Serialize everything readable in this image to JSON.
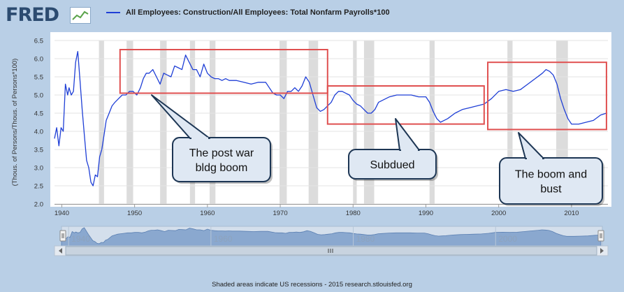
{
  "header": {
    "logo_text": "FRED",
    "logo_icon": "fred-chart-logo-icon",
    "legend_label": "All Employees: Construction/All Employees: Total Nonfarm Payrolls*100"
  },
  "footer": {
    "text": "Shaded areas indicate US recessions - 2015 research.stlouisfed.org"
  },
  "colors": {
    "series": "#1f3fd6",
    "annotation_box": "#e05050",
    "recession": "#dcdcdc",
    "callout_fill": "#dfe8f3",
    "callout_border": "#1d3654"
  },
  "annotations": [
    {
      "label": "The post war\nbldg boom",
      "box_x": [
        1948.0,
        1976.5
      ],
      "box_y": [
        5.05,
        6.25
      ]
    },
    {
      "label": "Subdued",
      "box_x": [
        1976.5,
        1998.0
      ],
      "box_y": [
        4.2,
        5.25
      ]
    },
    {
      "label": "The boom and\nbust",
      "box_x": [
        1998.5,
        2014.8
      ],
      "box_y": [
        4.05,
        5.9
      ]
    }
  ],
  "navigator": {
    "tick_labels": [
      "1940",
      "1960",
      "1980",
      "2000"
    ],
    "range": [
      1939,
      2015
    ]
  },
  "chart_data": {
    "type": "line",
    "title": "",
    "xlabel": "",
    "ylabel": "(Thous. of Persons/Thous. of Persons*100)",
    "xlim": [
      1939,
      2015
    ],
    "ylim": [
      2.0,
      6.5
    ],
    "x_ticks": [
      1940,
      1950,
      1960,
      1970,
      1980,
      1990,
      2000,
      2010
    ],
    "y_ticks": [
      2.0,
      2.5,
      3.0,
      3.5,
      4.0,
      4.5,
      5.0,
      5.5,
      6.0,
      6.5
    ],
    "grid": "horizontal",
    "recessions": [
      [
        1945.1,
        1945.8
      ],
      [
        1948.9,
        1949.8
      ],
      [
        1953.5,
        1954.4
      ],
      [
        1957.6,
        1958.3
      ],
      [
        1960.3,
        1961.1
      ],
      [
        1969.9,
        1970.9
      ],
      [
        1973.9,
        1975.2
      ],
      [
        1980.0,
        1980.5
      ],
      [
        1981.5,
        1982.9
      ],
      [
        1990.5,
        1991.2
      ],
      [
        2001.2,
        2001.9
      ],
      [
        2007.9,
        2009.5
      ]
    ],
    "series": [
      {
        "x": [
          1939.0,
          1939.3,
          1939.6,
          1939.9,
          1940.2,
          1940.5,
          1940.8,
          1941.0,
          1941.3,
          1941.6,
          1941.9,
          1942.2,
          1942.5,
          1942.8,
          1943.1,
          1943.4,
          1943.7,
          1944.0,
          1944.3,
          1944.6,
          1944.9,
          1945.2,
          1945.5,
          1945.8,
          1946.1,
          1946.5,
          1946.9,
          1947.3,
          1947.8,
          1948.3,
          1948.8,
          1949.3,
          1949.8,
          1950.3,
          1950.8,
          1951.2,
          1951.6,
          1952.0,
          1952.5,
          1953.0,
          1953.5,
          1954.0,
          1954.5,
          1955.0,
          1955.5,
          1956.0,
          1956.5,
          1957.0,
          1957.5,
          1958.0,
          1958.5,
          1959.0,
          1959.5,
          1960.0,
          1960.5,
          1961.0,
          1961.5,
          1962.0,
          1962.5,
          1963.0,
          1964.0,
          1965.0,
          1966.0,
          1967.0,
          1968.0,
          1969.0,
          1969.5,
          1970.0,
          1970.5,
          1971.0,
          1971.5,
          1972.0,
          1972.5,
          1973.0,
          1973.5,
          1974.0,
          1974.5,
          1975.0,
          1975.5,
          1976.0,
          1976.5,
          1977.0,
          1977.5,
          1978.0,
          1978.5,
          1979.0,
          1979.5,
          1980.0,
          1980.5,
          1981.0,
          1981.5,
          1982.0,
          1982.5,
          1983.0,
          1983.5,
          1984.0,
          1985.0,
          1986.0,
          1987.0,
          1988.0,
          1989.0,
          1990.0,
          1990.5,
          1991.0,
          1991.5,
          1992.0,
          1992.5,
          1993.0,
          1994.0,
          1995.0,
          1996.0,
          1997.0,
          1998.0,
          1999.0,
          2000.0,
          2001.0,
          2002.0,
          2003.0,
          2004.0,
          2005.0,
          2006.0,
          2006.5,
          2007.0,
          2007.5,
          2008.0,
          2008.5,
          2009.0,
          2009.5,
          2010.0,
          2010.5,
          2011.0,
          2012.0,
          2013.0,
          2014.0,
          2014.8
        ],
        "values": [
          3.8,
          4.1,
          3.6,
          4.1,
          4.0,
          5.3,
          5.0,
          5.2,
          5.0,
          5.1,
          5.9,
          6.2,
          5.4,
          4.6,
          3.9,
          3.2,
          3.0,
          2.6,
          2.5,
          2.8,
          2.75,
          3.3,
          3.5,
          3.9,
          4.3,
          4.5,
          4.7,
          4.8,
          4.9,
          5.0,
          5.0,
          5.1,
          5.1,
          5.0,
          5.2,
          5.45,
          5.6,
          5.6,
          5.7,
          5.5,
          5.3,
          5.6,
          5.55,
          5.5,
          5.8,
          5.75,
          5.7,
          6.1,
          5.9,
          5.7,
          5.7,
          5.5,
          5.85,
          5.6,
          5.5,
          5.45,
          5.45,
          5.4,
          5.45,
          5.4,
          5.4,
          5.35,
          5.3,
          5.35,
          5.35,
          5.05,
          5.0,
          5.0,
          4.9,
          5.1,
          5.1,
          5.2,
          5.1,
          5.25,
          5.5,
          5.35,
          5.0,
          4.65,
          4.55,
          4.6,
          4.7,
          4.8,
          5.0,
          5.1,
          5.1,
          5.05,
          5.0,
          4.85,
          4.75,
          4.7,
          4.6,
          4.5,
          4.5,
          4.6,
          4.8,
          4.85,
          4.95,
          5.0,
          5.0,
          5.0,
          4.95,
          4.95,
          4.8,
          4.55,
          4.35,
          4.25,
          4.3,
          4.35,
          4.5,
          4.6,
          4.65,
          4.7,
          4.75,
          4.9,
          5.1,
          5.15,
          5.1,
          5.15,
          5.3,
          5.45,
          5.6,
          5.7,
          5.65,
          5.55,
          5.3,
          4.9,
          4.6,
          4.35,
          4.2,
          4.2,
          4.2,
          4.25,
          4.3,
          4.45,
          4.5
        ]
      }
    ]
  }
}
